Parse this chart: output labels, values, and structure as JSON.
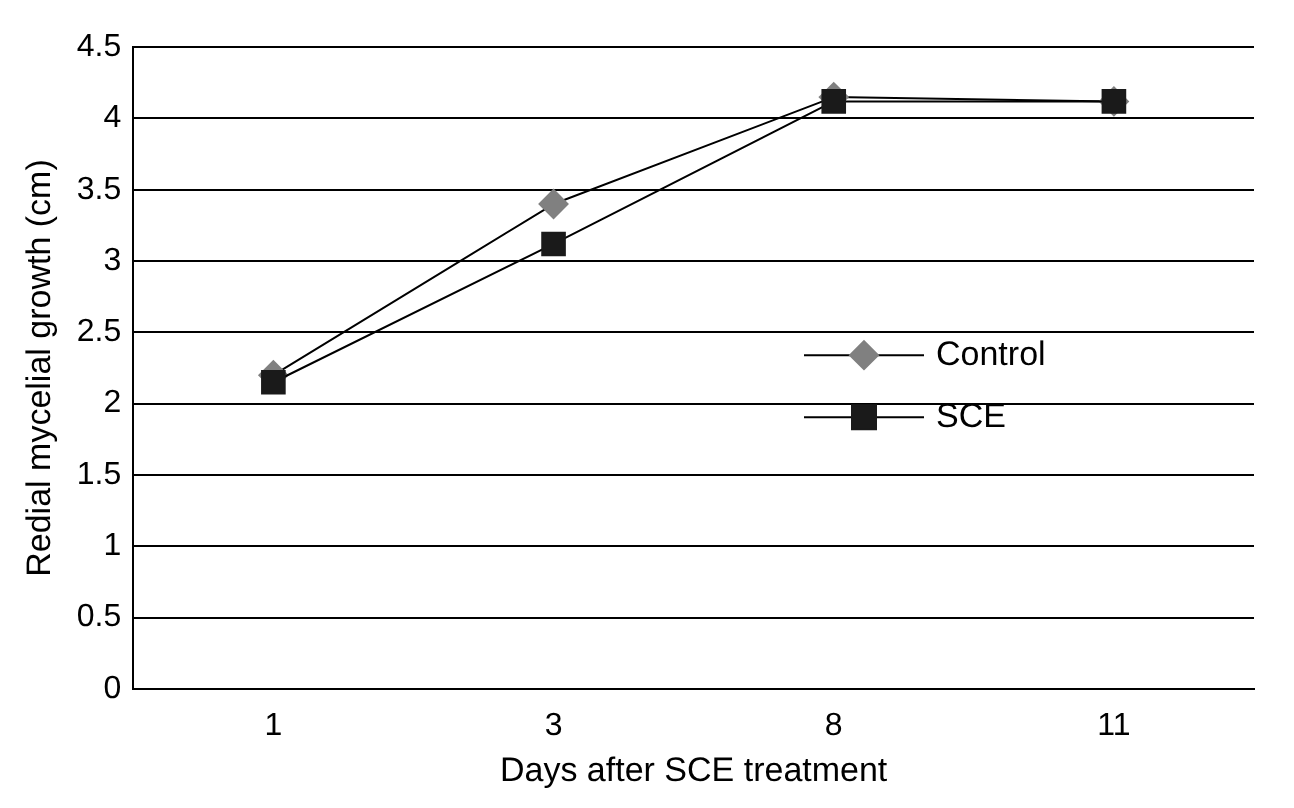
{
  "chart_data": {
    "type": "line",
    "xlabel": "Days after SCE treatment",
    "ylabel": "Redial mycelial growth (cm)",
    "categories": [
      "1",
      "3",
      "8",
      "11"
    ],
    "series": [
      {
        "name": "Control",
        "color": "#808080",
        "values": [
          2.2,
          3.4,
          4.15,
          4.12
        ],
        "marker": "diamond"
      },
      {
        "name": "SCE",
        "color": "#1a1a1a",
        "values": [
          2.15,
          3.12,
          4.12,
          4.12
        ],
        "marker": "square"
      }
    ],
    "ylim": [
      0,
      4.5
    ],
    "yticks": [
      0,
      0.5,
      1,
      1.5,
      2,
      2.5,
      3,
      3.5,
      4,
      4.5
    ],
    "grid": "y",
    "legend": "right"
  }
}
